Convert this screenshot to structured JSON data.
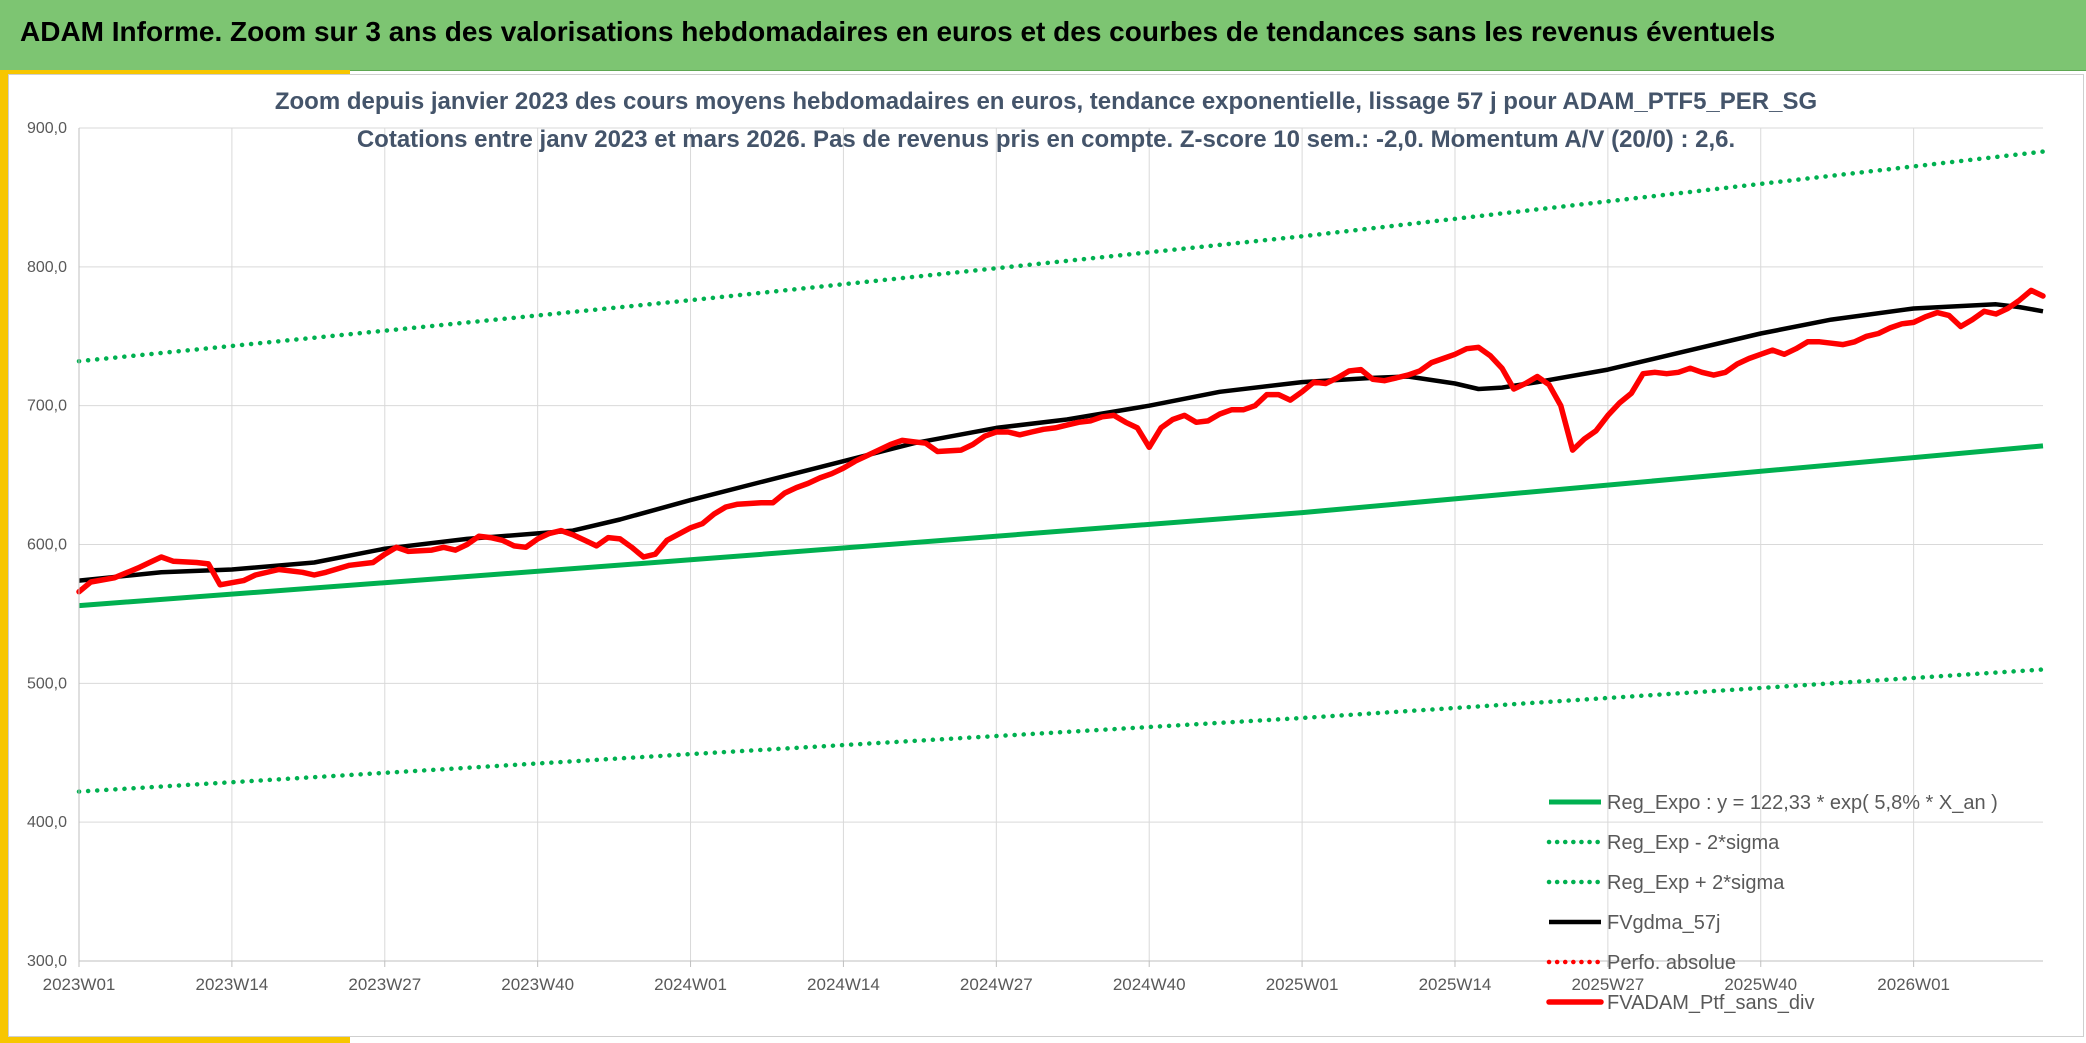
{
  "header": {
    "title": "ADAM Informe. Zoom sur 3 ans des valorisations hebdomadaires en euros et des courbes de tendances sans les revenus éventuels"
  },
  "colors": {
    "header_bg": "#7dc572",
    "accent": "#f7c600",
    "trend_green": "#00b050",
    "average_black": "#000000",
    "price_red": "#ff0000",
    "grid": "#d9d9d9",
    "title_text": "#44546a"
  },
  "chart_data": {
    "type": "line",
    "title": "Zoom depuis janvier 2023 des cours moyens hebdomadaires en euros, tendance exponentielle, lissage 57 j pour ADAM_PTF5_PER_SG",
    "subtitle": "Cotations entre janv 2023 et mars 2026. Pas de revenus pris en compte. Z-score 10 sem.: -2,0. Momentum A/V (20/0) : 2,6.",
    "xlabel": "",
    "ylabel": "",
    "ylim": [
      300,
      900
    ],
    "y_ticks": [
      "300,0",
      "400,0",
      "500,0",
      "600,0",
      "700,0",
      "800,0",
      "900,0"
    ],
    "x_range_weeks": [
      0,
      167
    ],
    "x_ticks": [
      {
        "label": "2023W01",
        "week": 0
      },
      {
        "label": "2023W14",
        "week": 13
      },
      {
        "label": "2023W27",
        "week": 26
      },
      {
        "label": "2023W40",
        "week": 39
      },
      {
        "label": "2024W01",
        "week": 52
      },
      {
        "label": "2024W14",
        "week": 65
      },
      {
        "label": "2024W27",
        "week": 78
      },
      {
        "label": "2024W40",
        "week": 91
      },
      {
        "label": "2025W01",
        "week": 104
      },
      {
        "label": "2025W14",
        "week": 117
      },
      {
        "label": "2025W27",
        "week": 130
      },
      {
        "label": "2025W40",
        "week": 143
      },
      {
        "label": "2026W01",
        "week": 156
      }
    ],
    "grid": true,
    "legend_position": "bottom-right",
    "series": [
      {
        "name": "Reg_Expo : y = 122,33 * exp( 5,8% *  X_an )",
        "style": "solid",
        "color": "#00b050",
        "points": [
          [
            0,
            556
          ],
          [
            52,
            589
          ],
          [
            104,
            623
          ],
          [
            167,
            671
          ]
        ]
      },
      {
        "name": "Reg_Exp - 2*sigma",
        "style": "dotted",
        "color": "#00b050",
        "points": [
          [
            0,
            422
          ],
          [
            52,
            449
          ],
          [
            104,
            475
          ],
          [
            167,
            510
          ]
        ]
      },
      {
        "name": "Reg_Exp + 2*sigma",
        "style": "dotted",
        "color": "#00b050",
        "points": [
          [
            0,
            732
          ],
          [
            52,
            776
          ],
          [
            104,
            822
          ],
          [
            167,
            883
          ]
        ]
      },
      {
        "name": "FVgdma_57j",
        "style": "solid",
        "color": "#000000",
        "points": [
          [
            0,
            574
          ],
          [
            7,
            580
          ],
          [
            13,
            582
          ],
          [
            20,
            587
          ],
          [
            26,
            597
          ],
          [
            33,
            604
          ],
          [
            39,
            608
          ],
          [
            42,
            610
          ],
          [
            46,
            618
          ],
          [
            52,
            632
          ],
          [
            58,
            645
          ],
          [
            65,
            660
          ],
          [
            71,
            673
          ],
          [
            78,
            684
          ],
          [
            84,
            690
          ],
          [
            91,
            700
          ],
          [
            97,
            710
          ],
          [
            104,
            717
          ],
          [
            110,
            720
          ],
          [
            113,
            721
          ],
          [
            117,
            716
          ],
          [
            119,
            712
          ],
          [
            121,
            713
          ],
          [
            124,
            717
          ],
          [
            130,
            726
          ],
          [
            136,
            738
          ],
          [
            143,
            752
          ],
          [
            149,
            762
          ],
          [
            156,
            770
          ],
          [
            163,
            773
          ],
          [
            165,
            771
          ],
          [
            167,
            768
          ]
        ]
      },
      {
        "name": "Perfo. absolue",
        "style": "dotted",
        "color": "#ff0000",
        "points": []
      },
      {
        "name": "FVADAM_Ptf_sans_div",
        "style": "solid",
        "color": "#ff0000",
        "points": [
          [
            0,
            566
          ],
          [
            1,
            573
          ],
          [
            3,
            576
          ],
          [
            5,
            583
          ],
          [
            6,
            587
          ],
          [
            7,
            591
          ],
          [
            8,
            588
          ],
          [
            10,
            587
          ],
          [
            11,
            586
          ],
          [
            12,
            571
          ],
          [
            14,
            574
          ],
          [
            15,
            578
          ],
          [
            17,
            582
          ],
          [
            19,
            580
          ],
          [
            20,
            578
          ],
          [
            21,
            580
          ],
          [
            23,
            585
          ],
          [
            25,
            587
          ],
          [
            26,
            593
          ],
          [
            27,
            598
          ],
          [
            28,
            595
          ],
          [
            30,
            596
          ],
          [
            31,
            598
          ],
          [
            32,
            596
          ],
          [
            33,
            600
          ],
          [
            34,
            606
          ],
          [
            35,
            605
          ],
          [
            36,
            603
          ],
          [
            37,
            599
          ],
          [
            38,
            598
          ],
          [
            39,
            604
          ],
          [
            40,
            608
          ],
          [
            41,
            610
          ],
          [
            42,
            607
          ],
          [
            43,
            603
          ],
          [
            44,
            599
          ],
          [
            45,
            605
          ],
          [
            46,
            604
          ],
          [
            47,
            598
          ],
          [
            48,
            591
          ],
          [
            49,
            593
          ],
          [
            50,
            603
          ],
          [
            52,
            612
          ],
          [
            53,
            615
          ],
          [
            54,
            622
          ],
          [
            55,
            627
          ],
          [
            56,
            629
          ],
          [
            58,
            630
          ],
          [
            59,
            630
          ],
          [
            60,
            637
          ],
          [
            61,
            641
          ],
          [
            62,
            644
          ],
          [
            63,
            648
          ],
          [
            64,
            651
          ],
          [
            65,
            655
          ],
          [
            66,
            660
          ],
          [
            67,
            664
          ],
          [
            68,
            668
          ],
          [
            69,
            672
          ],
          [
            70,
            675
          ],
          [
            71,
            674
          ],
          [
            72,
            673
          ],
          [
            73,
            667
          ],
          [
            75,
            668
          ],
          [
            76,
            672
          ],
          [
            77,
            678
          ],
          [
            78,
            681
          ],
          [
            79,
            681
          ],
          [
            80,
            679
          ],
          [
            81,
            681
          ],
          [
            82,
            683
          ],
          [
            83,
            684
          ],
          [
            84,
            686
          ],
          [
            85,
            688
          ],
          [
            86,
            689
          ],
          [
            87,
            692
          ],
          [
            88,
            693
          ],
          [
            89,
            688
          ],
          [
            90,
            684
          ],
          [
            91,
            670
          ],
          [
            92,
            684
          ],
          [
            93,
            690
          ],
          [
            94,
            693
          ],
          [
            95,
            688
          ],
          [
            96,
            689
          ],
          [
            97,
            694
          ],
          [
            98,
            697
          ],
          [
            99,
            697
          ],
          [
            100,
            700
          ],
          [
            101,
            708
          ],
          [
            102,
            708
          ],
          [
            103,
            704
          ],
          [
            104,
            710
          ],
          [
            105,
            717
          ],
          [
            106,
            716
          ],
          [
            107,
            720
          ],
          [
            108,
            725
          ],
          [
            109,
            726
          ],
          [
            110,
            719
          ],
          [
            111,
            718
          ],
          [
            112,
            720
          ],
          [
            113,
            722
          ],
          [
            114,
            725
          ],
          [
            115,
            731
          ],
          [
            116,
            734
          ],
          [
            117,
            737
          ],
          [
            118,
            741
          ],
          [
            119,
            742
          ],
          [
            120,
            736
          ],
          [
            121,
            727
          ],
          [
            122,
            712
          ],
          [
            123,
            716
          ],
          [
            124,
            721
          ],
          [
            125,
            715
          ],
          [
            126,
            700
          ],
          [
            127,
            668
          ],
          [
            128,
            676
          ],
          [
            129,
            682
          ],
          [
            130,
            693
          ],
          [
            131,
            702
          ],
          [
            132,
            709
          ],
          [
            133,
            723
          ],
          [
            134,
            724
          ],
          [
            135,
            723
          ],
          [
            136,
            724
          ],
          [
            137,
            727
          ],
          [
            138,
            724
          ],
          [
            139,
            722
          ],
          [
            140,
            724
          ],
          [
            141,
            730
          ],
          [
            142,
            734
          ],
          [
            143,
            737
          ],
          [
            144,
            740
          ],
          [
            145,
            737
          ],
          [
            146,
            741
          ],
          [
            147,
            746
          ],
          [
            148,
            746
          ],
          [
            149,
            745
          ],
          [
            150,
            744
          ],
          [
            151,
            746
          ],
          [
            152,
            750
          ],
          [
            153,
            752
          ],
          [
            154,
            756
          ],
          [
            155,
            759
          ],
          [
            156,
            760
          ],
          [
            157,
            764
          ],
          [
            158,
            767
          ],
          [
            159,
            765
          ],
          [
            160,
            757
          ],
          [
            161,
            762
          ],
          [
            162,
            768
          ],
          [
            163,
            766
          ],
          [
            164,
            770
          ],
          [
            165,
            776
          ],
          [
            166,
            783
          ],
          [
            167,
            779
          ]
        ]
      }
    ]
  }
}
